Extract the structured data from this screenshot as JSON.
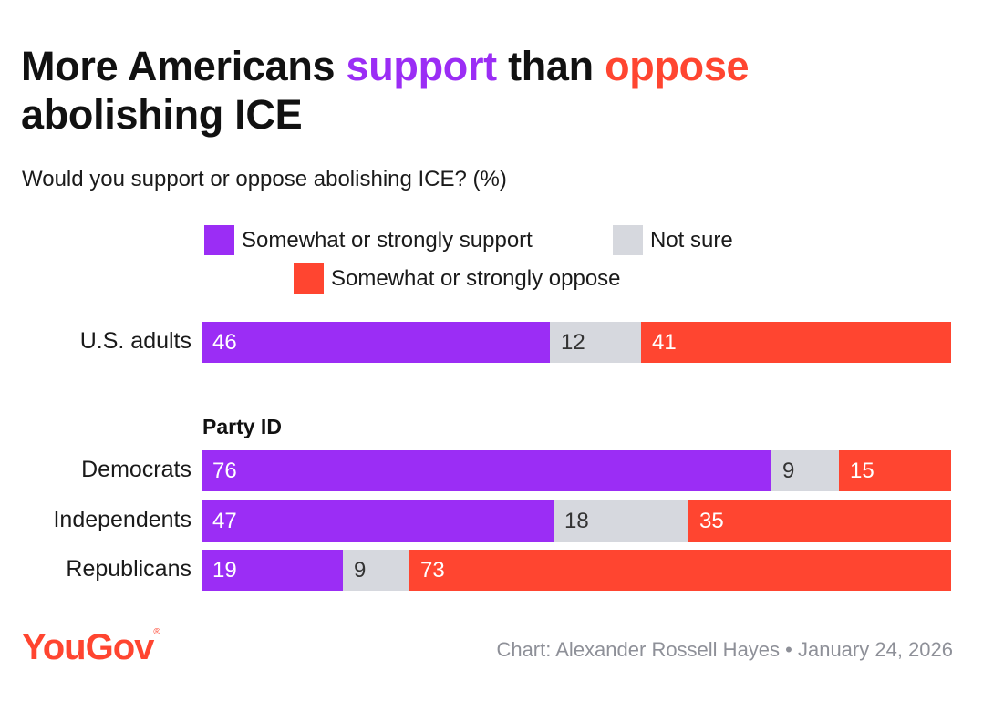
{
  "chart_data": {
    "type": "stacked-bar-horizontal",
    "title_parts": {
      "prefix": "More Americans",
      "support_word": "support",
      "middle": "than",
      "oppose_word": "oppose",
      "suffix": "abolishing ICE"
    },
    "subtitle": "Would you support or oppose abolishing ICE? (%)",
    "legend": [
      {
        "key": "support",
        "label": "Somewhat or strongly support",
        "color": "#9B2DF5"
      },
      {
        "key": "notsure",
        "label": "Not sure",
        "color": "#D6D8DE"
      },
      {
        "key": "oppose",
        "label": "Somewhat or strongly oppose",
        "color": "#FF4530"
      }
    ],
    "group_label": "Party ID",
    "rows": [
      {
        "label": "U.S. adults",
        "support": 46,
        "notsure": 12,
        "oppose": 41
      },
      {
        "label": "Democrats",
        "support": 76,
        "notsure": 9,
        "oppose": 15
      },
      {
        "label": "Independents",
        "support": 47,
        "notsure": 18,
        "oppose": 35
      },
      {
        "label": "Republicans",
        "support": 19,
        "notsure": 9,
        "oppose": 73
      }
    ]
  },
  "footer": {
    "logo": "YouGov",
    "logo_mark": "®",
    "credit": "Chart: Alexander Rossell Hayes • January 24, 2026"
  }
}
